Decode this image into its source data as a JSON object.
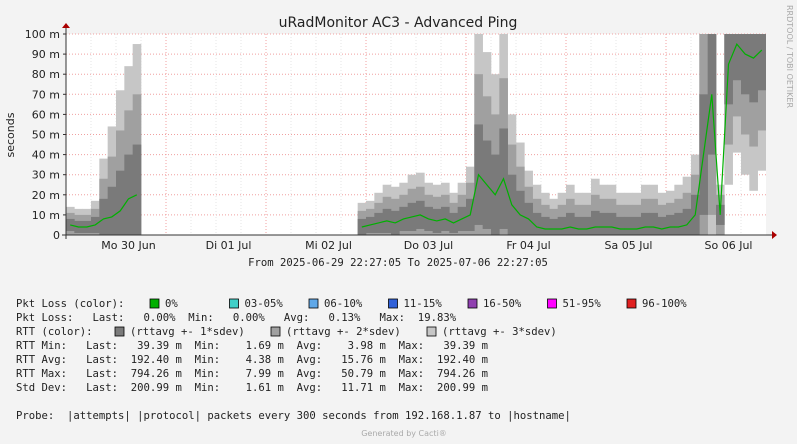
{
  "chart_data": {
    "type": "smokeping",
    "title": "uRadMonitor AC3 - Advanced Ping",
    "y_label": "seconds",
    "side_text": "RRDTOOL / TOBI OETIKER",
    "period": "From 2025-06-29 22:27:05 To 2025-07-06 22:27:05",
    "footer": "Generated by Cacti®",
    "grid": true,
    "ylim": [
      0,
      0.1
    ],
    "yticks": [
      0,
      {
        "value": 0.01,
        "label": "10 m"
      },
      {
        "value": 0.02,
        "label": "20 m"
      },
      {
        "value": 0.03,
        "label": "30 m"
      },
      {
        "value": 0.04,
        "label": "40 m"
      },
      {
        "value": 0.05,
        "label": "50 m"
      },
      {
        "value": 0.06,
        "label": "60 m"
      },
      {
        "value": 0.07,
        "label": "70 m"
      },
      {
        "value": 0.08,
        "label": "80 m"
      },
      {
        "value": 0.09,
        "label": "90 m"
      },
      {
        "value": 0.1,
        "label": "100 m"
      }
    ],
    "categories": [
      null,
      null,
      null,
      null,
      null,
      null,
      null,
      "Mo 30 Jun",
      null,
      null,
      null,
      null,
      null,
      null,
      null,
      null,
      null,
      null,
      null,
      "Di 01 Jul",
      null,
      null,
      null,
      null,
      null,
      null,
      null,
      null,
      null,
      null,
      null,
      "Mi 02 Jul",
      null,
      null,
      null,
      null,
      null,
      null,
      null,
      null,
      null,
      null,
      null,
      "Do 03 Jul",
      null,
      null,
      null,
      null,
      null,
      null,
      null,
      null,
      null,
      null,
      null,
      "Fr 04 Jul",
      null,
      null,
      null,
      null,
      null,
      null,
      null,
      null,
      null,
      null,
      null,
      "Sa 05 Jul",
      null,
      null,
      null,
      null,
      null,
      null,
      null,
      null,
      null,
      null,
      null,
      "So 06 Jul",
      null,
      null,
      null,
      null
    ],
    "rttavg": {
      "color": "#00b000",
      "values": [
        0.005,
        0.004,
        0.004,
        0.005,
        0.008,
        0.009,
        0.012,
        0.018,
        0.02,
        null,
        null,
        null,
        null,
        null,
        null,
        null,
        null,
        null,
        null,
        null,
        null,
        null,
        null,
        null,
        null,
        null,
        null,
        null,
        null,
        null,
        null,
        null,
        null,
        null,
        null,
        0.004,
        0.005,
        0.006,
        0.007,
        0.006,
        0.008,
        0.009,
        0.01,
        0.008,
        0.007,
        0.008,
        0.006,
        0.008,
        0.01,
        0.03,
        0.025,
        0.02,
        0.028,
        0.015,
        0.01,
        0.008,
        0.004,
        0.003,
        0.003,
        0.003,
        0.004,
        0.003,
        0.003,
        0.004,
        0.004,
        0.004,
        0.003,
        0.003,
        0.003,
        0.004,
        0.004,
        0.003,
        0.004,
        0.004,
        0.005,
        0.01,
        0.04,
        0.07,
        0.01,
        0.085,
        0.095,
        0.09,
        0.088,
        0.092
      ]
    },
    "sdev": {
      "values": [
        0.003,
        0.003,
        0.003,
        0.004,
        0.01,
        0.015,
        0.02,
        0.022,
        0.025,
        null,
        null,
        null,
        null,
        null,
        null,
        null,
        null,
        null,
        null,
        null,
        null,
        null,
        null,
        null,
        null,
        null,
        null,
        null,
        null,
        null,
        null,
        null,
        null,
        null,
        null,
        0.004,
        0.004,
        0.005,
        0.006,
        0.006,
        0.006,
        0.007,
        0.007,
        0.006,
        0.006,
        0.006,
        0.005,
        0.006,
        0.008,
        0.025,
        0.022,
        0.02,
        0.025,
        0.015,
        0.012,
        0.008,
        0.007,
        0.006,
        0.005,
        0.006,
        0.007,
        0.006,
        0.006,
        0.008,
        0.007,
        0.007,
        0.006,
        0.006,
        0.006,
        0.007,
        0.007,
        0.006,
        0.006,
        0.007,
        0.008,
        0.01,
        0.03,
        0.03,
        0.005,
        0.02,
        0.018,
        0.02,
        0.022,
        0.02
      ]
    },
    "loss_legend": {
      "label": "Pkt Loss (color):",
      "items": [
        {
          "label": "0%",
          "color": "#00b000"
        },
        {
          "label": "03-05%",
          "color": "#40d0c8"
        },
        {
          "label": "06-10%",
          "color": "#60a8e8"
        },
        {
          "label": "11-15%",
          "color": "#3060d8"
        },
        {
          "label": "16-50%",
          "color": "#9040b0"
        },
        {
          "label": "51-95%",
          "color": "#ff00ff"
        },
        {
          "label": "96-100%",
          "color": "#e02020"
        }
      ]
    },
    "band_legend": {
      "label": "RTT (color):",
      "items": [
        {
          "label": "(rttavg +- 1*sdev)",
          "color": "#7a7a7a"
        },
        {
          "label": "(rttavg +- 2*sdev)",
          "color": "#a0a0a0"
        },
        {
          "label": "(rttavg +- 3*sdev)",
          "color": "#c6c6c6"
        }
      ]
    },
    "stats": [
      "Pkt Loss:   Last:   0.00%  Min:   0.00%   Avg:   0.13%   Max:  19.83%",
      "RTT Min:   Last:   39.39 m  Min:    1.69 m  Avg:    3.98 m  Max:   39.39 m",
      "RTT Avg:   Last:  192.40 m  Min:    4.38 m  Avg:   15.76 m  Max:  192.40 m",
      "RTT Max:   Last:  794.26 m  Min:    7.99 m  Avg:   50.79 m  Max:  794.26 m",
      "Std Dev:   Last:  200.99 m  Min:    1.61 m  Avg:   11.71 m  Max:  200.99 m"
    ],
    "probe": "Probe:  |attempts| |protocol| packets every 300 seconds from 192.168.1.87 to |hostname|"
  }
}
